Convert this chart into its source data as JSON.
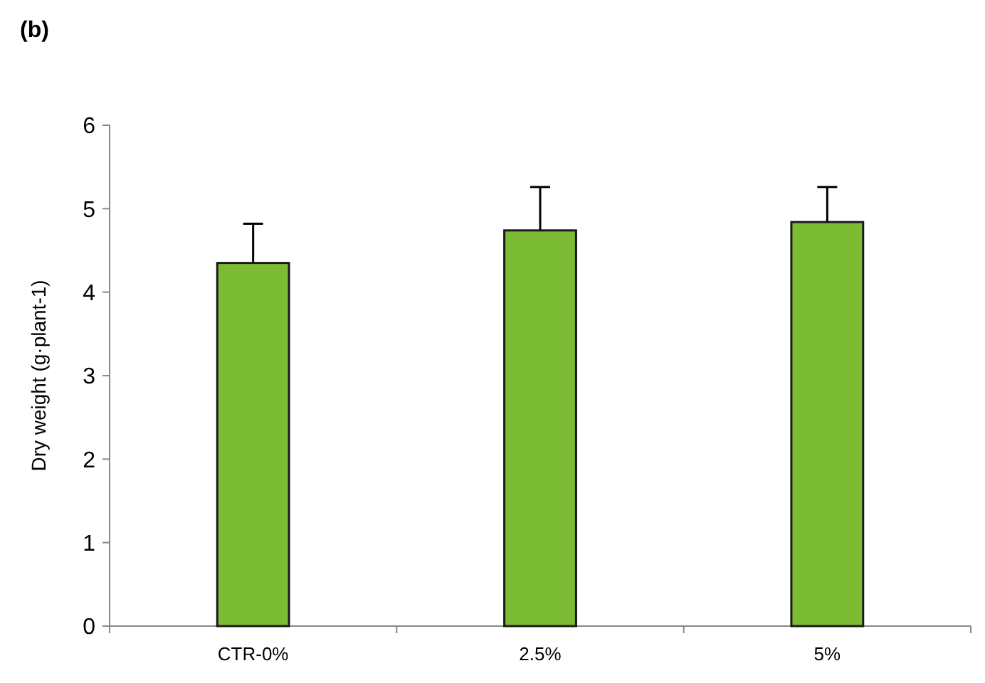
{
  "chart_data": {
    "type": "bar",
    "title": "(b)",
    "ylabel": "Dry weight (g·plant-1)",
    "categories": [
      "CTR-0%",
      "2.5%",
      "5%"
    ],
    "values": [
      4.35,
      4.74,
      4.84
    ],
    "errors": [
      [
        4.35,
        4.82
      ],
      [
        4.74,
        5.26
      ],
      [
        4.84,
        5.26
      ]
    ],
    "color": "#7cbb34",
    "ylim": [
      0,
      6
    ],
    "yticks": [
      0,
      1,
      2,
      3,
      4,
      5,
      6
    ]
  }
}
